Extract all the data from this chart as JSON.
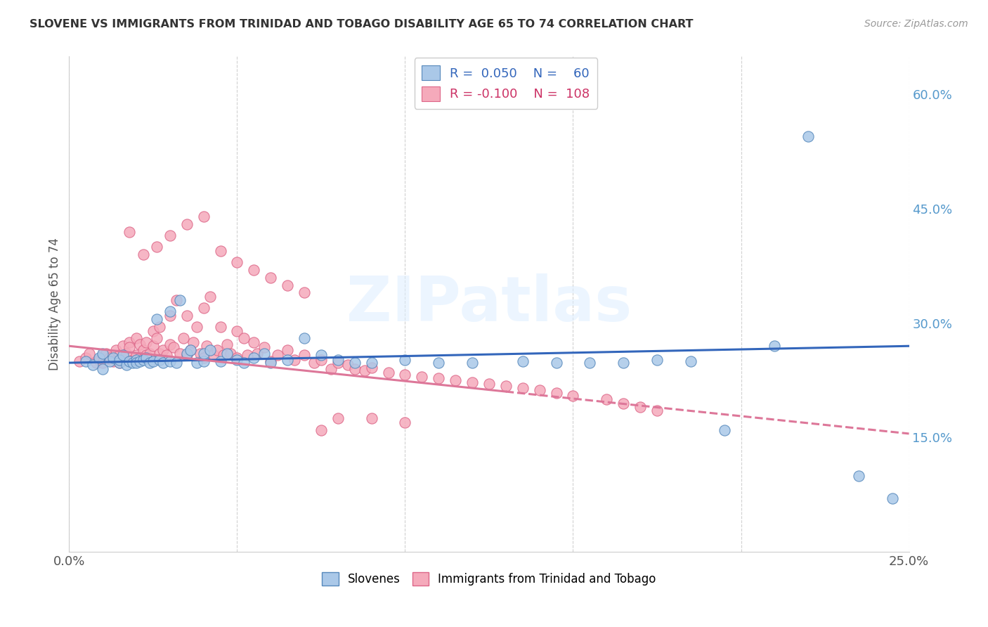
{
  "title": "SLOVENE VS IMMIGRANTS FROM TRINIDAD AND TOBAGO DISABILITY AGE 65 TO 74 CORRELATION CHART",
  "source": "Source: ZipAtlas.com",
  "ylabel": "Disability Age 65 to 74",
  "xlabel": "",
  "xlim": [
    0.0,
    0.25
  ],
  "ylim": [
    0.0,
    0.65
  ],
  "xticks": [
    0.0,
    0.05,
    0.1,
    0.15,
    0.2,
    0.25
  ],
  "yticks": [
    0.15,
    0.3,
    0.45,
    0.6
  ],
  "ytick_labels": [
    "15.0%",
    "30.0%",
    "45.0%",
    "60.0%"
  ],
  "xtick_labels": [
    "0.0%",
    "",
    "",
    "",
    "",
    "25.0%"
  ],
  "background_color": "#ffffff",
  "grid_color": "#cccccc",
  "watermark": "ZIPatlas",
  "slovene_color": "#aac8e8",
  "slovene_edge_color": "#5588bb",
  "trinid_color": "#f5aabb",
  "trinid_edge_color": "#dd6688",
  "slovene_line_color": "#3366bb",
  "trinid_line_color": "#dd7799",
  "slovene_scatter_x": [
    0.005,
    0.007,
    0.009,
    0.01,
    0.01,
    0.012,
    0.013,
    0.015,
    0.015,
    0.016,
    0.017,
    0.018,
    0.019,
    0.02,
    0.02,
    0.021,
    0.022,
    0.023,
    0.024,
    0.025,
    0.026,
    0.027,
    0.028,
    0.03,
    0.03,
    0.032,
    0.033,
    0.035,
    0.036,
    0.038,
    0.04,
    0.04,
    0.042,
    0.045,
    0.047,
    0.05,
    0.052,
    0.055,
    0.058,
    0.06,
    0.065,
    0.07,
    0.075,
    0.08,
    0.085,
    0.09,
    0.1,
    0.11,
    0.12,
    0.135,
    0.145,
    0.155,
    0.165,
    0.175,
    0.185,
    0.195,
    0.21,
    0.22,
    0.235,
    0.245
  ],
  "slovene_scatter_y": [
    0.25,
    0.245,
    0.255,
    0.24,
    0.26,
    0.25,
    0.255,
    0.248,
    0.252,
    0.258,
    0.245,
    0.25,
    0.248,
    0.252,
    0.248,
    0.25,
    0.252,
    0.255,
    0.248,
    0.25,
    0.305,
    0.252,
    0.248,
    0.315,
    0.25,
    0.248,
    0.33,
    0.26,
    0.265,
    0.248,
    0.25,
    0.26,
    0.265,
    0.25,
    0.26,
    0.252,
    0.248,
    0.255,
    0.26,
    0.248,
    0.252,
    0.28,
    0.258,
    0.252,
    0.248,
    0.248,
    0.252,
    0.248,
    0.248,
    0.25,
    0.248,
    0.248,
    0.248,
    0.252,
    0.25,
    0.16,
    0.27,
    0.545,
    0.1,
    0.07
  ],
  "trinid_scatter_x": [
    0.003,
    0.005,
    0.006,
    0.008,
    0.009,
    0.01,
    0.01,
    0.011,
    0.012,
    0.013,
    0.014,
    0.015,
    0.015,
    0.016,
    0.016,
    0.017,
    0.018,
    0.018,
    0.019,
    0.02,
    0.02,
    0.021,
    0.021,
    0.022,
    0.023,
    0.023,
    0.024,
    0.025,
    0.025,
    0.026,
    0.027,
    0.027,
    0.028,
    0.029,
    0.03,
    0.03,
    0.031,
    0.032,
    0.033,
    0.034,
    0.035,
    0.035,
    0.036,
    0.037,
    0.038,
    0.039,
    0.04,
    0.04,
    0.041,
    0.042,
    0.043,
    0.044,
    0.045,
    0.046,
    0.047,
    0.048,
    0.05,
    0.05,
    0.052,
    0.053,
    0.055,
    0.056,
    0.058,
    0.06,
    0.062,
    0.065,
    0.067,
    0.07,
    0.073,
    0.075,
    0.078,
    0.08,
    0.083,
    0.085,
    0.088,
    0.09,
    0.095,
    0.1,
    0.105,
    0.11,
    0.115,
    0.12,
    0.125,
    0.13,
    0.135,
    0.14,
    0.145,
    0.15,
    0.16,
    0.165,
    0.17,
    0.175,
    0.018,
    0.022,
    0.026,
    0.03,
    0.035,
    0.04,
    0.045,
    0.05,
    0.055,
    0.06,
    0.065,
    0.07,
    0.075,
    0.08,
    0.09,
    0.1
  ],
  "trinid_scatter_y": [
    0.25,
    0.255,
    0.26,
    0.248,
    0.252,
    0.258,
    0.248,
    0.26,
    0.255,
    0.25,
    0.265,
    0.258,
    0.248,
    0.27,
    0.252,
    0.26,
    0.275,
    0.268,
    0.252,
    0.28,
    0.258,
    0.272,
    0.255,
    0.265,
    0.258,
    0.275,
    0.26,
    0.29,
    0.27,
    0.28,
    0.295,
    0.26,
    0.265,
    0.258,
    0.31,
    0.272,
    0.268,
    0.33,
    0.26,
    0.28,
    0.31,
    0.258,
    0.265,
    0.275,
    0.295,
    0.26,
    0.32,
    0.255,
    0.27,
    0.335,
    0.258,
    0.265,
    0.295,
    0.258,
    0.272,
    0.26,
    0.29,
    0.255,
    0.28,
    0.258,
    0.275,
    0.26,
    0.268,
    0.25,
    0.258,
    0.265,
    0.252,
    0.258,
    0.248,
    0.252,
    0.24,
    0.248,
    0.245,
    0.24,
    0.238,
    0.242,
    0.235,
    0.232,
    0.23,
    0.228,
    0.225,
    0.222,
    0.22,
    0.218,
    0.215,
    0.212,
    0.208,
    0.205,
    0.2,
    0.195,
    0.19,
    0.185,
    0.42,
    0.39,
    0.4,
    0.415,
    0.43,
    0.44,
    0.395,
    0.38,
    0.37,
    0.36,
    0.35,
    0.34,
    0.16,
    0.175,
    0.175,
    0.17
  ]
}
